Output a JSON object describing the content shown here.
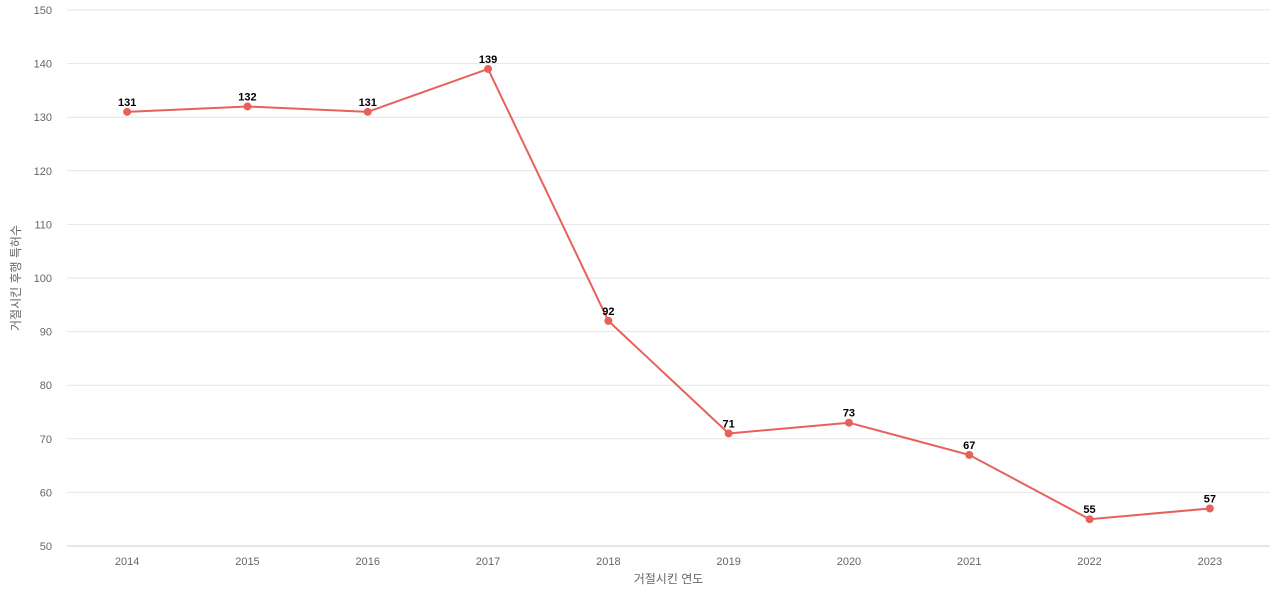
{
  "chart_data": {
    "type": "line",
    "title": "",
    "xlabel": "거절시킨 연도",
    "ylabel": "거절시킨 후행 특허수",
    "x": [
      "2014",
      "2015",
      "2016",
      "2017",
      "2018",
      "2019",
      "2020",
      "2021",
      "2022",
      "2023"
    ],
    "series": [
      {
        "values": [
          131,
          132,
          131,
          139,
          92,
          71,
          73,
          67,
          55,
          57
        ],
        "color": "#e8605c"
      }
    ],
    "ylim": [
      50,
      150
    ],
    "yticks": [
      50,
      60,
      70,
      80,
      90,
      100,
      110,
      120,
      130,
      140,
      150
    ],
    "grid": true,
    "data_labels": true
  }
}
